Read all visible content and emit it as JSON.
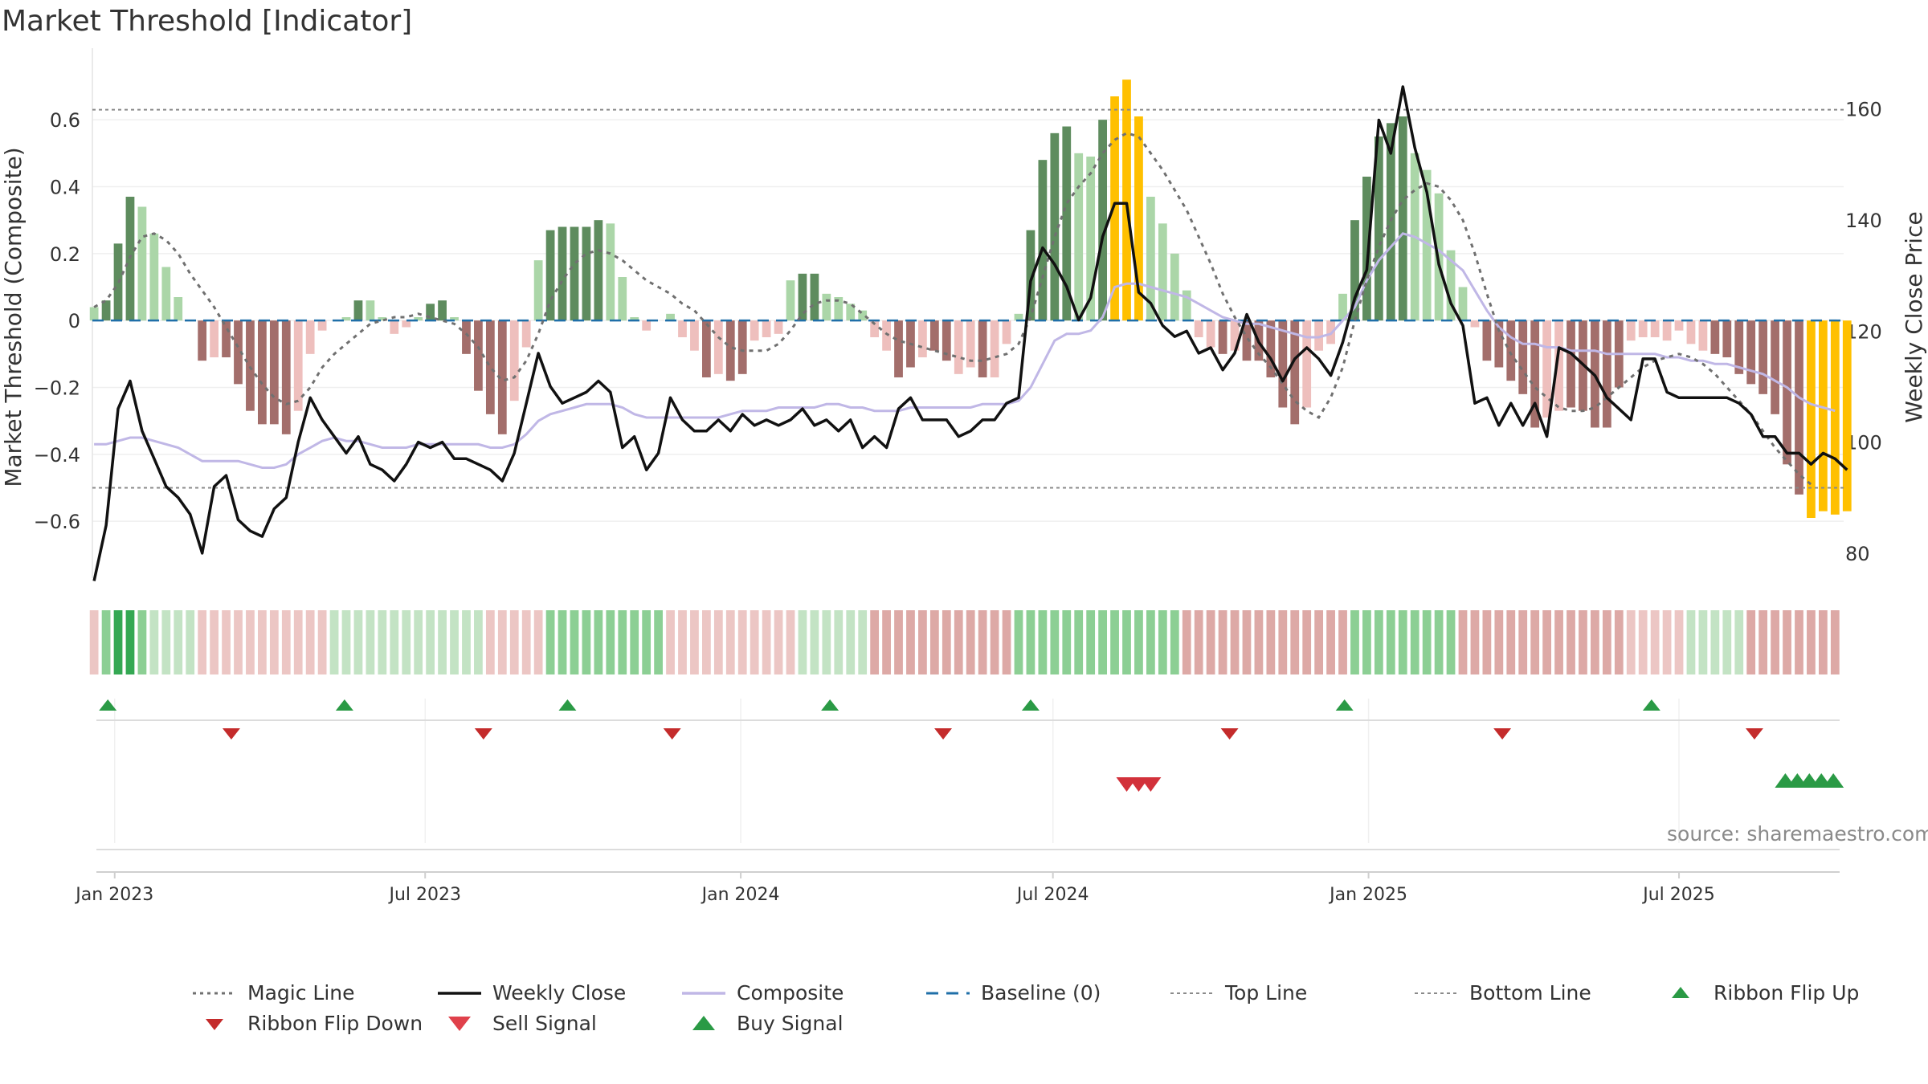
{
  "title": "Market Threshold [Indicator]",
  "source": "source: sharemaestro.com",
  "colors": {
    "bull_dark": "#5e8c5e",
    "bull_light": "#abd6a8",
    "bear_dark": "#a36e6b",
    "bear_light": "#eebfbd",
    "extreme": "#ffc000",
    "weekly_close": "#111111",
    "composite": "#c0b7e6",
    "magic": "#707070",
    "baseline": "#1f6fa8",
    "signal_green": "#2a9a45",
    "signal_red": "#d2313a",
    "ribbon_flip_down": "#c42b2b"
  },
  "chart_data": {
    "type": "bar",
    "title": "Market Threshold [Indicator]",
    "ylabel": "Market Threshold (Composite)",
    "y2label": "Weekly Close Price",
    "ylim": [
      -0.77,
      0.79
    ],
    "y2lim": [
      75.5,
      169.5
    ],
    "yticks": [
      0.6,
      0.4,
      0.2,
      0,
      -0.2,
      -0.4,
      -0.6
    ],
    "ytick_labels": [
      "0.6",
      "0.4",
      "0.2",
      "0",
      "−0.2",
      "−0.4",
      "−0.6"
    ],
    "y2ticks": [
      160,
      140,
      120,
      100,
      80
    ],
    "y2tick_labels": [
      "160",
      "140",
      "120",
      "100",
      "80"
    ],
    "x_range": [
      "2022-12-19",
      "2025-10-05"
    ],
    "xticks": [
      "2023-01-01",
      "2023-07-01",
      "2024-01-01",
      "2024-07-01",
      "2025-01-01",
      "2025-07-01"
    ],
    "xtick_labels": [
      "Jan 2023",
      "Jul 2023",
      "Jan 2024",
      "Jul 2024",
      "Jan 2025",
      "Jul 2025"
    ],
    "first_week": "2022-12-20",
    "week_step_days": 7,
    "top_line": 0.63,
    "bottom_line": -0.5,
    "baseline": 0,
    "grid": true,
    "histogram": [
      0.04,
      0.06,
      0.23,
      0.37,
      0.34,
      0.26,
      0.16,
      0.07,
      0.0,
      -0.12,
      -0.11,
      -0.11,
      -0.19,
      -0.27,
      -0.31,
      -0.31,
      -0.34,
      -0.27,
      -0.1,
      -0.03,
      0.0,
      0.01,
      0.06,
      0.06,
      0.01,
      -0.04,
      -0.02,
      0.01,
      0.05,
      0.06,
      0.01,
      -0.1,
      -0.21,
      -0.28,
      -0.34,
      -0.24,
      -0.08,
      0.18,
      0.27,
      0.28,
      0.28,
      0.28,
      0.3,
      0.29,
      0.13,
      0.01,
      -0.03,
      0.0,
      0.02,
      -0.05,
      -0.09,
      -0.17,
      -0.16,
      -0.18,
      -0.16,
      -0.06,
      -0.05,
      -0.04,
      0.12,
      0.14,
      0.14,
      0.08,
      0.07,
      0.05,
      0.03,
      -0.05,
      -0.09,
      -0.17,
      -0.14,
      -0.11,
      -0.09,
      -0.12,
      -0.16,
      -0.14,
      -0.17,
      -0.17,
      -0.07,
      0.02,
      0.27,
      0.48,
      0.56,
      0.58,
      0.5,
      0.49,
      0.6,
      0.67,
      0.72,
      0.61,
      0.37,
      0.29,
      0.2,
      0.09,
      -0.05,
      -0.08,
      -0.1,
      -0.09,
      -0.12,
      -0.12,
      -0.17,
      -0.26,
      -0.31,
      -0.26,
      -0.09,
      -0.07,
      0.08,
      0.3,
      0.43,
      0.55,
      0.59,
      0.61,
      0.5,
      0.45,
      0.38,
      0.21,
      0.1,
      -0.02,
      -0.12,
      -0.14,
      -0.18,
      -0.22,
      -0.32,
      -0.29,
      -0.27,
      -0.26,
      -0.27,
      -0.32,
      -0.32,
      -0.2,
      -0.06,
      -0.05,
      -0.05,
      -0.06,
      -0.03,
      -0.07,
      -0.09,
      -0.1,
      -0.11,
      -0.16,
      -0.19,
      -0.22,
      -0.28,
      -0.43,
      -0.52,
      -0.59,
      -0.57,
      -0.58,
      -0.57
    ],
    "histogram_shade": [
      "light",
      "dark",
      "dark",
      "dark",
      "light",
      "light",
      "light",
      "light",
      "light",
      "dark",
      "light",
      "dark",
      "dark",
      "dark",
      "dark",
      "dark",
      "dark",
      "light",
      "light",
      "light",
      "light",
      "light",
      "dark",
      "light",
      "light",
      "light",
      "light",
      "light",
      "dark",
      "dark",
      "light",
      "dark",
      "dark",
      "dark",
      "dark",
      "light",
      "light",
      "light",
      "dark",
      "dark",
      "dark",
      "dark",
      "dark",
      "light",
      "light",
      "light",
      "light",
      "light",
      "light",
      "light",
      "light",
      "dark",
      "light",
      "dark",
      "dark",
      "light",
      "light",
      "light",
      "light",
      "dark",
      "dark",
      "light",
      "light",
      "light",
      "light",
      "light",
      "light",
      "dark",
      "dark",
      "light",
      "dark",
      "dark",
      "light",
      "light",
      "dark",
      "light",
      "light",
      "light",
      "dark",
      "dark",
      "dark",
      "dark",
      "light",
      "light",
      "dark",
      "extreme",
      "extreme",
      "extreme",
      "light",
      "light",
      "light",
      "light",
      "light",
      "light",
      "dark",
      "light",
      "dark",
      "dark",
      "dark",
      "dark",
      "dark",
      "light",
      "light",
      "light",
      "light",
      "dark",
      "dark",
      "dark",
      "dark",
      "dark",
      "light",
      "light",
      "light",
      "light",
      "light",
      "light",
      "dark",
      "dark",
      "dark",
      "dark",
      "dark",
      "light",
      "light",
      "dark",
      "dark",
      "dark",
      "dark",
      "dark",
      "light",
      "light",
      "light",
      "light",
      "light",
      "light",
      "light",
      "dark",
      "dark",
      "dark",
      "dark",
      "dark",
      "dark",
      "dark",
      "dark",
      "extreme",
      "extreme",
      "extreme",
      "extreme",
      "extreme"
    ],
    "series": [
      {
        "name": "Magic Line",
        "axis": "left",
        "style": "dotted",
        "values": [
          0.04,
          0.06,
          0.11,
          0.19,
          0.25,
          0.26,
          0.24,
          0.2,
          0.14,
          0.09,
          0.04,
          -0.02,
          -0.08,
          -0.14,
          -0.19,
          -0.23,
          -0.25,
          -0.24,
          -0.2,
          -0.14,
          -0.1,
          -0.07,
          -0.04,
          -0.01,
          0.0,
          0.01,
          0.01,
          0.02,
          0.01,
          0.0,
          -0.01,
          -0.04,
          -0.08,
          -0.14,
          -0.18,
          -0.17,
          -0.12,
          -0.04,
          0.06,
          0.12,
          0.17,
          0.2,
          0.21,
          0.2,
          0.18,
          0.15,
          0.12,
          0.1,
          0.08,
          0.05,
          0.03,
          -0.01,
          -0.05,
          -0.08,
          -0.09,
          -0.09,
          -0.09,
          -0.07,
          -0.03,
          0.02,
          0.05,
          0.06,
          0.06,
          0.05,
          0.02,
          -0.01,
          -0.04,
          -0.06,
          -0.07,
          -0.08,
          -0.09,
          -0.1,
          -0.11,
          -0.12,
          -0.12,
          -0.11,
          -0.1,
          -0.07,
          0.01,
          0.13,
          0.25,
          0.35,
          0.4,
          0.44,
          0.5,
          0.54,
          0.56,
          0.55,
          0.5,
          0.45,
          0.39,
          0.33,
          0.25,
          0.17,
          0.08,
          0.01,
          -0.05,
          -0.1,
          -0.14,
          -0.19,
          -0.24,
          -0.27,
          -0.29,
          -0.23,
          -0.14,
          0.0,
          0.12,
          0.22,
          0.3,
          0.36,
          0.39,
          0.41,
          0.4,
          0.36,
          0.3,
          0.2,
          0.08,
          -0.03,
          -0.1,
          -0.15,
          -0.2,
          -0.23,
          -0.26,
          -0.27,
          -0.27,
          -0.26,
          -0.23,
          -0.2,
          -0.17,
          -0.14,
          -0.12,
          -0.11,
          -0.1,
          -0.11,
          -0.13,
          -0.16,
          -0.2,
          -0.24,
          -0.28,
          -0.33,
          -0.38,
          -0.42,
          -0.46,
          -0.49
        ]
      },
      {
        "name": "Weekly Close",
        "axis": "right",
        "style": "solid",
        "values": [
          75,
          85,
          106,
          111,
          102,
          97,
          92,
          90,
          87,
          80,
          92,
          94,
          86,
          84,
          83,
          88,
          90,
          100,
          108,
          104,
          101,
          98,
          101,
          96,
          95,
          93,
          96,
          100,
          99,
          100,
          97,
          97,
          96,
          95,
          93,
          98,
          107,
          116,
          110,
          107,
          108,
          109,
          111,
          109,
          99,
          101,
          95,
          98,
          108,
          104,
          102,
          102,
          104,
          102,
          105,
          103,
          104,
          103,
          104,
          106,
          103,
          104,
          102,
          104,
          99,
          101,
          99,
          106,
          108,
          104,
          104,
          104,
          101,
          102,
          104,
          104,
          107,
          108,
          129,
          135,
          132,
          128,
          122,
          126,
          137,
          143,
          143,
          127,
          125,
          121,
          119,
          120,
          116,
          117,
          113,
          116,
          123,
          118,
          115,
          111,
          115,
          117,
          115,
          112,
          118,
          126,
          131,
          158,
          152,
          164,
          153,
          145,
          132,
          125,
          121,
          107,
          108,
          103,
          107,
          103,
          107,
          101,
          117,
          116,
          114,
          112,
          108,
          106,
          104,
          115,
          115,
          109,
          108,
          108,
          108,
          108,
          108,
          107,
          105,
          101,
          101,
          98,
          98,
          96,
          98,
          97,
          95
        ]
      },
      {
        "name": "Composite",
        "axis": "left",
        "style": "solid",
        "values": [
          -0.37,
          -0.37,
          -0.36,
          -0.35,
          -0.35,
          -0.36,
          -0.37,
          -0.38,
          -0.4,
          -0.42,
          -0.42,
          -0.42,
          -0.42,
          -0.43,
          -0.44,
          -0.44,
          -0.43,
          -0.4,
          -0.38,
          -0.36,
          -0.35,
          -0.36,
          -0.36,
          -0.37,
          -0.38,
          -0.38,
          -0.38,
          -0.37,
          -0.37,
          -0.37,
          -0.37,
          -0.37,
          -0.37,
          -0.38,
          -0.38,
          -0.37,
          -0.34,
          -0.3,
          -0.28,
          -0.27,
          -0.26,
          -0.25,
          -0.25,
          -0.25,
          -0.26,
          -0.28,
          -0.29,
          -0.29,
          -0.29,
          -0.29,
          -0.29,
          -0.29,
          -0.29,
          -0.28,
          -0.27,
          -0.27,
          -0.27,
          -0.26,
          -0.26,
          -0.26,
          -0.26,
          -0.25,
          -0.25,
          -0.26,
          -0.26,
          -0.27,
          -0.27,
          -0.27,
          -0.26,
          -0.26,
          -0.26,
          -0.26,
          -0.26,
          -0.26,
          -0.25,
          -0.25,
          -0.25,
          -0.24,
          -0.2,
          -0.13,
          -0.06,
          -0.04,
          -0.04,
          -0.03,
          0.01,
          0.1,
          0.11,
          0.11,
          0.1,
          0.09,
          0.08,
          0.07,
          0.05,
          0.03,
          0.01,
          0.0,
          -0.01,
          -0.01,
          -0.02,
          -0.03,
          -0.04,
          -0.05,
          -0.05,
          -0.04,
          0.0,
          0.04,
          0.12,
          0.18,
          0.22,
          0.26,
          0.25,
          0.23,
          0.21,
          0.18,
          0.15,
          0.09,
          0.03,
          -0.02,
          -0.05,
          -0.07,
          -0.07,
          -0.08,
          -0.08,
          -0.09,
          -0.09,
          -0.09,
          -0.1,
          -0.1,
          -0.1,
          -0.1,
          -0.1,
          -0.11,
          -0.11,
          -0.12,
          -0.12,
          -0.13,
          -0.13,
          -0.14,
          -0.15,
          -0.16,
          -0.18,
          -0.2,
          -0.23,
          -0.25,
          -0.26,
          -0.27
        ]
      }
    ],
    "ribbon": [
      "rl",
      "gm",
      "gd",
      "gd",
      "gm",
      "gl",
      "gl",
      "gl",
      "gl",
      "rl",
      "rl",
      "rl",
      "rl",
      "rl",
      "rl",
      "rl",
      "rl",
      "rl",
      "rl",
      "rl",
      "gl",
      "gl",
      "gl",
      "gl",
      "gl",
      "gl",
      "gl",
      "gl",
      "gl",
      "gl",
      "gl",
      "gl",
      "gl",
      "rl",
      "rl",
      "rl",
      "rl",
      "rl",
      "gm",
      "gm",
      "gm",
      "gm",
      "gm",
      "gm",
      "gm",
      "gm",
      "gm",
      "gm",
      "rl",
      "rl",
      "rl",
      "rl",
      "rl",
      "rl",
      "rl",
      "rl",
      "rl",
      "rl",
      "rl",
      "gl",
      "gl",
      "gl",
      "gl",
      "gl",
      "gl",
      "rm",
      "rm",
      "rm",
      "rm",
      "rm",
      "rm",
      "rm",
      "rm",
      "rm",
      "rm",
      "rm",
      "rm",
      "gm",
      "gm",
      "gm",
      "gm",
      "gm",
      "gm",
      "gm",
      "gm",
      "gm",
      "gm",
      "gm",
      "gm",
      "gm",
      "gm",
      "rm",
      "rm",
      "rm",
      "rm",
      "rm",
      "rm",
      "rm",
      "rm",
      "rm",
      "rm",
      "rm",
      "rm",
      "rm",
      "rm",
      "gm",
      "gm",
      "gm",
      "gm",
      "gm",
      "gm",
      "gm",
      "gm",
      "gm",
      "rm",
      "rm",
      "rm",
      "rm",
      "rm",
      "rm",
      "rm",
      "rm",
      "rm",
      "rm",
      "rm",
      "rm",
      "rm",
      "rm",
      "rl",
      "rl",
      "rl",
      "rl",
      "rl",
      "gl",
      "gl",
      "gl",
      "gl",
      "gl",
      "rm",
      "rm",
      "rm",
      "rm",
      "rm",
      "rm",
      "rm",
      "rm"
    ],
    "ribbon_palette": {
      "gd": "#34a853",
      "gm": "#8ccf94",
      "gl": "#c3e3c4",
      "rl": "#ecc6c4",
      "rm": "#dda9a6"
    },
    "ribbon_flip_up": [
      "2022-12-28",
      "2023-05-15",
      "2023-09-22",
      "2024-02-22",
      "2024-06-18",
      "2024-12-18",
      "2025-06-15"
    ],
    "ribbon_flip_down": [
      "2023-03-10",
      "2023-08-04",
      "2023-11-22",
      "2024-04-28",
      "2024-10-12",
      "2025-03-20",
      "2025-08-14"
    ],
    "sell_signals": [
      "2024-08-13",
      "2024-08-20",
      "2024-08-27"
    ],
    "buy_signals": [
      "2025-09-01",
      "2025-09-08",
      "2025-09-15",
      "2025-09-22",
      "2025-09-29"
    ]
  },
  "legend": [
    {
      "label": "Magic Line",
      "symbol": "dotted"
    },
    {
      "label": "Weekly Close",
      "symbol": "solid-black"
    },
    {
      "label": "Composite",
      "symbol": "solid-lavender"
    },
    {
      "label": "Baseline (0)",
      "symbol": "dashed-blue"
    },
    {
      "label": "Top Line",
      "symbol": "dotted-grey"
    },
    {
      "label": "Bottom Line",
      "symbol": "dotted-grey"
    },
    {
      "label": "Ribbon Flip Up",
      "symbol": "triangle-up-green"
    },
    {
      "label": "Ribbon Flip Down",
      "symbol": "triangle-down-red"
    },
    {
      "label": "Sell Signal",
      "symbol": "triangle-down-red-large"
    },
    {
      "label": "Buy Signal",
      "symbol": "triangle-up-green-large"
    }
  ]
}
